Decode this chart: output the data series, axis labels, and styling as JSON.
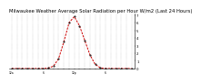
{
  "title": "Milwaukee Weather Average Solar Radiation per Hour W/m2 (Last 24 Hours)",
  "hours": [
    0,
    1,
    2,
    3,
    4,
    5,
    6,
    7,
    8,
    9,
    10,
    11,
    12,
    13,
    14,
    15,
    16,
    17,
    18,
    19,
    20,
    21,
    22,
    23
  ],
  "solar": [
    0,
    0,
    0,
    0,
    0,
    0,
    0,
    5,
    30,
    130,
    350,
    600,
    680,
    560,
    370,
    180,
    55,
    8,
    0,
    0,
    0,
    0,
    0,
    0
  ],
  "line_color": "#cc0000",
  "marker_color": "#111111",
  "grid_color": "#999999",
  "bg_color": "#ffffff",
  "title_fontsize": 3.8,
  "ylim": [
    0,
    720
  ],
  "ytick_values": [
    0,
    100,
    200,
    300,
    400,
    500,
    600,
    700
  ],
  "ytick_labels": [
    "0",
    "1",
    "2",
    "3",
    "4",
    "5",
    "6",
    "7"
  ],
  "ylabel_fontsize": 2.8,
  "xlabel_fontsize": 2.2
}
